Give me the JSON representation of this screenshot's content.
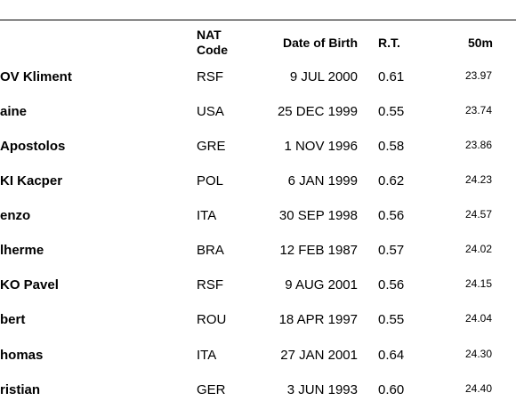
{
  "header": {
    "nat_line1": "NAT",
    "nat_line2": "Code",
    "dob": "Date of Birth",
    "rt": "R.T.",
    "split": "50m"
  },
  "rows": [
    {
      "name": "OV Kliment",
      "nat": "RSF",
      "dob": "9 JUL 2000",
      "rt": "0.61",
      "split": "23.97"
    },
    {
      "name": "aine",
      "nat": "USA",
      "dob": "25 DEC 1999",
      "rt": "0.55",
      "split": "23.74"
    },
    {
      "name": " Apostolos",
      "nat": "GRE",
      "dob": "1 NOV 1996",
      "rt": "0.58",
      "split": "23.86"
    },
    {
      "name": "KI Kacper",
      "nat": "POL",
      "dob": "6 JAN 1999",
      "rt": "0.62",
      "split": "24.23"
    },
    {
      "name": "enzo",
      "nat": "ITA",
      "dob": "30 SEP 1998",
      "rt": "0.56",
      "split": "24.57"
    },
    {
      "name": "lherme",
      "nat": "BRA",
      "dob": "12 FEB 1987",
      "rt": "0.57",
      "split": "24.02"
    },
    {
      "name": "KO Pavel",
      "nat": "RSF",
      "dob": "9 AUG 2001",
      "rt": "0.56",
      "split": "24.15"
    },
    {
      "name": "bert",
      "nat": "ROU",
      "dob": "18 APR 1997",
      "rt": "0.55",
      "split": "24.04"
    },
    {
      "name": "homas",
      "nat": "ITA",
      "dob": "27 JAN 2001",
      "rt": "0.64",
      "split": "24.30"
    },
    {
      "name": "ristian",
      "nat": "GER",
      "dob": "3 JUN 1993",
      "rt": "0.60",
      "split": "24.40"
    }
  ]
}
